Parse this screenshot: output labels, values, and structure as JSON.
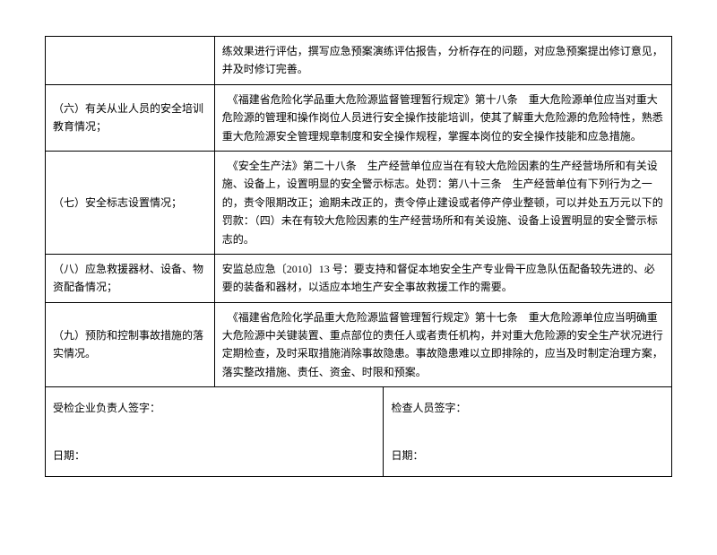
{
  "rows": [
    {
      "label": "",
      "content": "练效果进行评估，撰写应急预案演练评估报告，分析存在的问题，对应急预案提出修订意见，并及时修订完善。"
    },
    {
      "label": "（六）有关从业人员的安全培训教育情况；",
      "content": "　《福建省危险化学品重大危险源监督管理暂行规定》第十八条　重大危险源单位应当对重大危险源的管理和操作岗位人员进行安全操作技能培训，使其了解重大危险源的危险特性，熟悉重大危险源安全管理规章制度和安全操作规程，掌握本岗位的安全操作技能和应急措施。"
    },
    {
      "label": "（七）安全标志设置情况；",
      "content": "　《安全生产法》第二十八条　生产经营单位应当在有较大危险因素的生产经营场所和有关设施、设备上，设置明显的安全警示标志。处罚：第八十三条　生产经营单位有下列行为之一的，责令限期改正；逾期未改正的，责令停止建设或者停产停业整顿，可以并处五万元以下的罚款：（四）未在有较大危险因素的生产经营场所和有关设施、设备上设置明显的安全警示标志的。"
    },
    {
      "label": "（八）应急救援器材、设备、物资配备情况；",
      "content": "安监总应急〔2010〕13 号：要支持和督促本地安全生产专业骨干应急队伍配备较先进的、必要的装备和器材，以适应本地生产安全事故救援工作的需要。"
    },
    {
      "label": "（九）预防和控制事故措施的落实情况。",
      "content": "　《福建省危险化学品重大危险源监督管理暂行规定》第十七条　重大危险源单位应当明确重大危险源中关键装置、重点部位的责任人或者责任机构，并对重大危险源的安全生产状况进行定期检查，及时采取措施消除事故隐患。事故隐患难以立即排除的，应当及时制定治理方案，落实整改措施、责任、资金、时限和预案。"
    }
  ],
  "signature": {
    "left_line1": "受检企业负责人签字：",
    "left_line2": "日期：",
    "right_line1": "检查人员签字：",
    "right_line2": "日期："
  },
  "styles": {
    "font_size": 12,
    "border_color": "#000000",
    "background_color": "#ffffff",
    "text_color": "#000000"
  }
}
